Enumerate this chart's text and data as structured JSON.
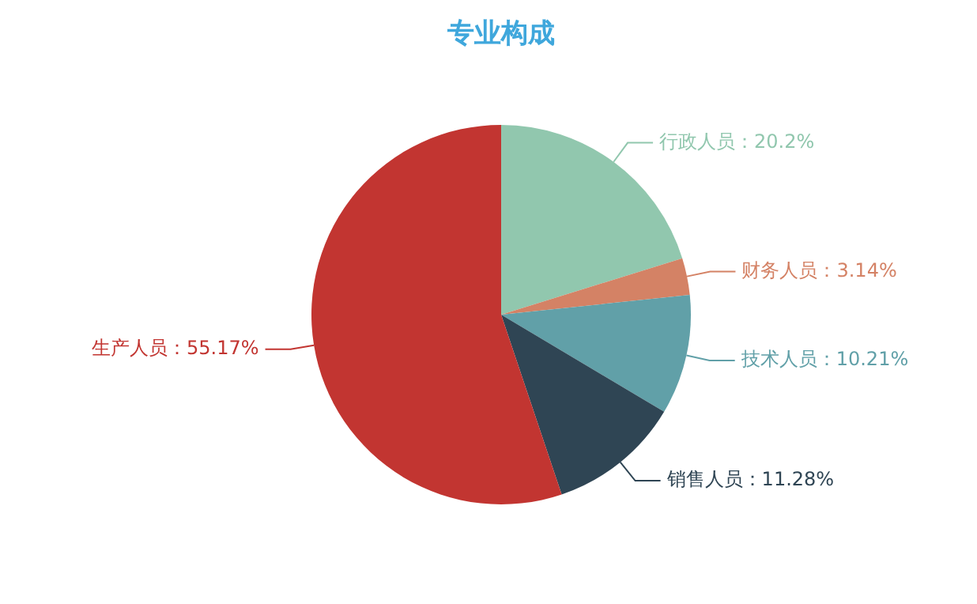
{
  "chart_data": {
    "type": "pie",
    "title": "专业构成",
    "categories": [
      "行政人员",
      "财务人员",
      "技术人员",
      "销售人员",
      "生产人员"
    ],
    "values": [
      20.2,
      3.14,
      10.21,
      11.28,
      55.17
    ],
    "colors": [
      "#91c7ae",
      "#d48265",
      "#61a0a8",
      "#2f4554",
      "#c23531"
    ],
    "value_labels": [
      "20.2%",
      "3.14%",
      "10.21%",
      "11.28%",
      "55.17%"
    ],
    "legend": false
  }
}
